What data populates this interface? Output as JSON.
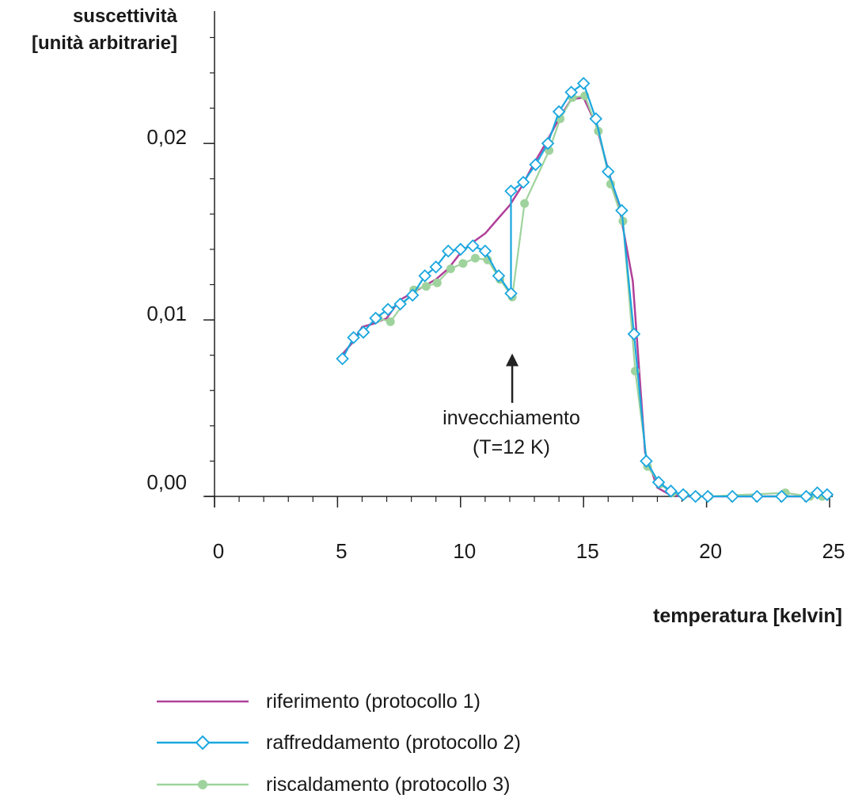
{
  "chart_data": {
    "type": "line",
    "title": "",
    "ylabel_line1": "suscettività",
    "ylabel_line2": "[unità arbitrarie]",
    "xlabel": "temperatura [kelvin]",
    "xlim": [
      0,
      25
    ],
    "ylim": [
      0,
      0.0275
    ],
    "x_ticks": [
      0,
      5,
      10,
      15,
      20,
      25
    ],
    "x_tick_labels": [
      "0",
      "5",
      "10",
      "15",
      "20",
      "25"
    ],
    "y_ticks": [
      0,
      0.01,
      0.02
    ],
    "y_tick_labels": [
      "0,00",
      "0,01",
      "0,02"
    ],
    "annotation": {
      "line1": "invecchiamento",
      "line2": "(T=12 K)",
      "x": 12.1,
      "y_from": 0.0053,
      "y_to": 0.0081
    },
    "series": [
      {
        "name": "riferimento (protocollo 1)",
        "color": "#b0409a",
        "marker": "none",
        "x": [
          5.1,
          5.6,
          6.0,
          6.5,
          7.0,
          7.5,
          8.0,
          8.5,
          9.0,
          9.5,
          10.0,
          10.5,
          11.0,
          11.5,
          12.0,
          12.5,
          13.0,
          13.5,
          14.0,
          14.5,
          15.0,
          15.5,
          16.0,
          16.5,
          17.0,
          17.5,
          18.0,
          18.5,
          19.0,
          20.0,
          21.0,
          22.0,
          23.0,
          24.0,
          25.0
        ],
        "values": [
          0.0079,
          0.0087,
          0.0096,
          0.0098,
          0.0101,
          0.0111,
          0.0115,
          0.0119,
          0.0123,
          0.0129,
          0.0138,
          0.0144,
          0.0149,
          0.0157,
          0.0165,
          0.0176,
          0.0189,
          0.0201,
          0.0214,
          0.0225,
          0.0226,
          0.0211,
          0.0185,
          0.016,
          0.0122,
          0.0025,
          0.0005,
          0.0001,
          0.0,
          0.0,
          0.0,
          0.0,
          0.0,
          0.0,
          0.0
        ]
      },
      {
        "name": "raffreddamento (protocollo 2)",
        "color": "#1aa7df",
        "marker": "diamond",
        "x": [
          5.2,
          5.65,
          6.05,
          6.55,
          7.05,
          7.55,
          8.05,
          8.55,
          9.0,
          9.5,
          10.0,
          10.5,
          11.0,
          11.55,
          12.05,
          12.05,
          12.55,
          13.05,
          13.55,
          14.0,
          14.5,
          15.0,
          15.5,
          16.0,
          16.55,
          17.05,
          17.55,
          18.05,
          18.55,
          19.05,
          19.55,
          20.05,
          21.05,
          22.05,
          23.05,
          24.05,
          24.5,
          24.9
        ],
        "values": [
          0.0078,
          0.009,
          0.0093,
          0.0101,
          0.0106,
          0.0109,
          0.0114,
          0.0125,
          0.013,
          0.0139,
          0.014,
          0.0142,
          0.0139,
          0.0125,
          0.0115,
          0.0173,
          0.0178,
          0.0188,
          0.02,
          0.0218,
          0.0229,
          0.0234,
          0.0214,
          0.0184,
          0.0162,
          0.0092,
          0.002,
          0.0008,
          0.0003,
          0.0001,
          0.0,
          0.0,
          0.0,
          0.0,
          0.0,
          0.0,
          0.0002,
          0.0001
        ]
      },
      {
        "name": "riscaldamento (protocollo 3)",
        "color": "#9fd39d",
        "marker": "circle",
        "x": [
          6.65,
          7.15,
          8.1,
          8.6,
          9.05,
          9.6,
          10.1,
          10.6,
          11.1,
          11.6,
          12.1,
          12.6,
          13.6,
          14.05,
          14.55,
          15.05,
          15.6,
          16.1,
          16.6,
          17.1,
          17.6,
          18.1,
          18.6,
          19.1,
          19.6,
          20.1,
          23.2,
          24.2,
          24.7
        ],
        "values": [
          0.0101,
          0.0099,
          0.0117,
          0.0119,
          0.0121,
          0.0129,
          0.0132,
          0.0135,
          0.0134,
          0.0123,
          0.0113,
          0.0166,
          0.0196,
          0.0214,
          0.0226,
          0.0227,
          0.0207,
          0.0177,
          0.0156,
          0.0071,
          0.0017,
          0.0007,
          0.0002,
          0.0001,
          0.0,
          0.0,
          0.0002,
          0.0,
          0.0
        ]
      }
    ]
  }
}
